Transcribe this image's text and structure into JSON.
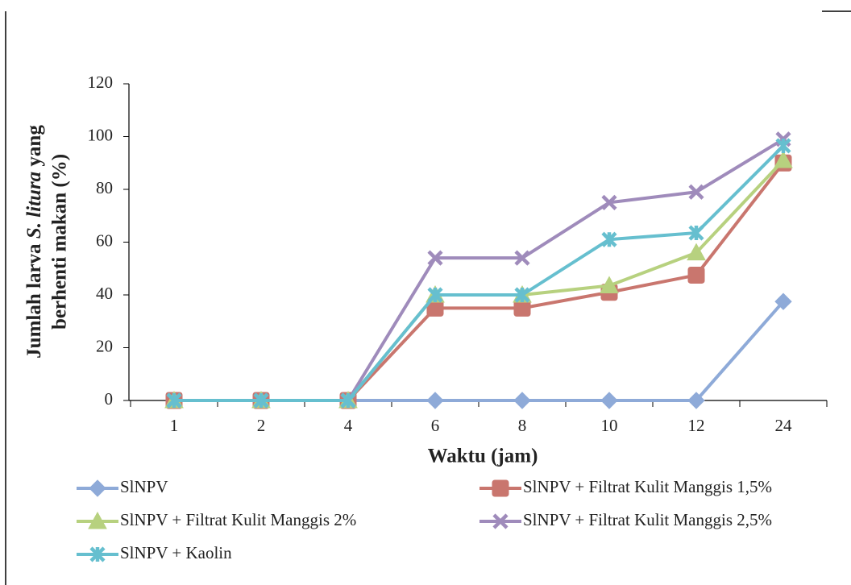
{
  "chart_data": {
    "type": "line",
    "x_label": "Waktu (jam)",
    "y_label": {
      "line1": [
        "Jumlah larva",
        "S. litura",
        "yang"
      ],
      "line2": "berhenti makan (%)"
    },
    "categories": [
      "1",
      "2",
      "4",
      "6",
      "8",
      "10",
      "12",
      "24"
    ],
    "ylim": [
      0,
      120
    ],
    "yticks": [
      0,
      20,
      40,
      60,
      80,
      100,
      120
    ],
    "series": [
      {
        "name": "SlNPV",
        "color": "#8eaad8",
        "marker": "diamond",
        "values": [
          0,
          0,
          0,
          0,
          0,
          0,
          0,
          37.5
        ]
      },
      {
        "name": "SlNPV + Filtrat Kulit Manggis 1,5%",
        "color": "#c9766e",
        "marker": "square",
        "values": [
          0,
          0,
          0,
          35,
          35,
          41,
          47.5,
          90
        ]
      },
      {
        "name": "SlNPV + Filtrat Kulit Manggis 2%",
        "color": "#b7d17f",
        "marker": "triangle",
        "values": [
          0,
          0,
          0,
          40,
          40,
          43.5,
          56,
          91
        ]
      },
      {
        "name": "SlNPV + Filtrat Kulit Manggis 2,5%",
        "color": "#9f8bbb",
        "marker": "x",
        "values": [
          0,
          0,
          0,
          54,
          54,
          75,
          79,
          99
        ]
      },
      {
        "name": "SlNPV + Kaolin",
        "color": "#66bfcf",
        "marker": "star",
        "values": [
          0,
          0,
          0,
          40,
          40,
          61,
          63.5,
          96.5
        ]
      }
    ]
  }
}
